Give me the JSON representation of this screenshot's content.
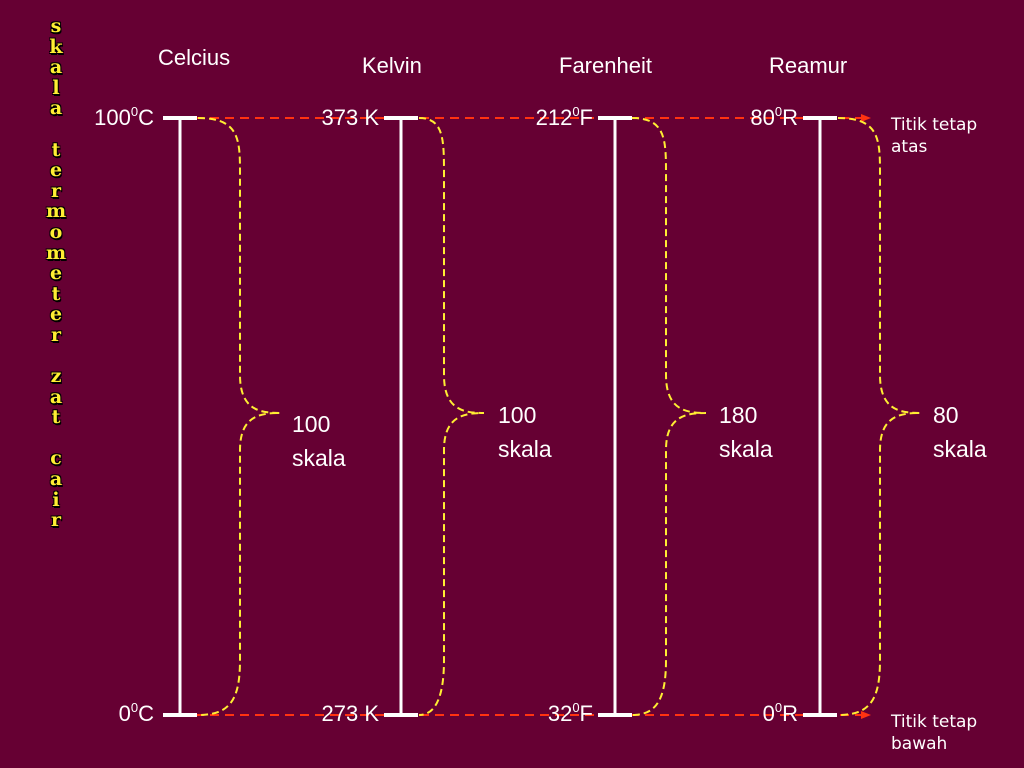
{
  "vertical_title": "skala termometer zat cair",
  "scales": [
    {
      "name": "Celcius",
      "top_value": "100",
      "top_unit": "C",
      "bottom_value": "0",
      "bottom_unit": "C",
      "span": "100",
      "span_word": "skala",
      "degree_sup": "0"
    },
    {
      "name": "Kelvin",
      "top_value": "373 K",
      "bottom_value": "273 K",
      "span": "100",
      "span_word": "skala"
    },
    {
      "name": "Farenheit",
      "top_value": "212",
      "top_unit": "F",
      "bottom_value": "32",
      "bottom_unit": "F",
      "span": "180",
      "span_word": "skala",
      "degree_sup": "0"
    },
    {
      "name": "Reamur",
      "top_value": "80",
      "top_unit": "R",
      "bottom_value": "0",
      "bottom_unit": "R",
      "span": "80",
      "span_word": "skala",
      "degree_sup": "0"
    }
  ],
  "notes": {
    "top_line1": "Titik tetap",
    "top_line2": "atas",
    "bottom_line1": "Titik tetap",
    "bottom_line2": "bawah"
  },
  "colors": {
    "background": "#660033",
    "scale_line": "#ffffff",
    "brace": "#ffee33",
    "reference_line": "#ff3311",
    "title": "#ffee33"
  }
}
